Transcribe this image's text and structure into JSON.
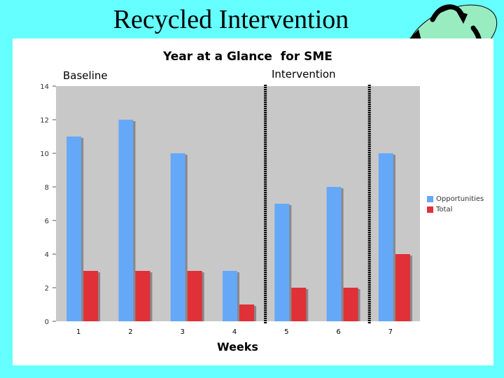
{
  "slide": {
    "title": "Recycled Intervention",
    "logo_icon": "recycle-arrows-icon"
  },
  "colors": {
    "background": "#66ffff",
    "opportunities": "#66a8f8",
    "total": "#e03038",
    "plot_bg": "#c8c8c8",
    "logo_fill": "#99ecc0"
  },
  "chart_data": {
    "type": "bar",
    "title": "Year at a Glance  for SME",
    "xlabel": "Weeks",
    "ylabel": "",
    "categories": [
      "1",
      "2",
      "3",
      "4",
      "5",
      "6",
      "7"
    ],
    "series": [
      {
        "name": "Opportunities",
        "values": [
          11,
          12,
          10,
          3,
          7,
          8,
          10
        ]
      },
      {
        "name": "Total",
        "values": [
          3,
          3,
          3,
          1,
          2,
          2,
          4
        ]
      }
    ],
    "ylim": [
      0,
      14
    ],
    "yticks": [
      "0",
      "2",
      "4",
      "6",
      "8",
      "10",
      "12",
      "14"
    ],
    "grid": false,
    "legend": "right",
    "phases": [
      {
        "label": "Baseline",
        "start_after_week": 0
      },
      {
        "label": "Intervention",
        "start_after_week": 4
      },
      {
        "label": "",
        "start_after_week": 6
      }
    ]
  }
}
